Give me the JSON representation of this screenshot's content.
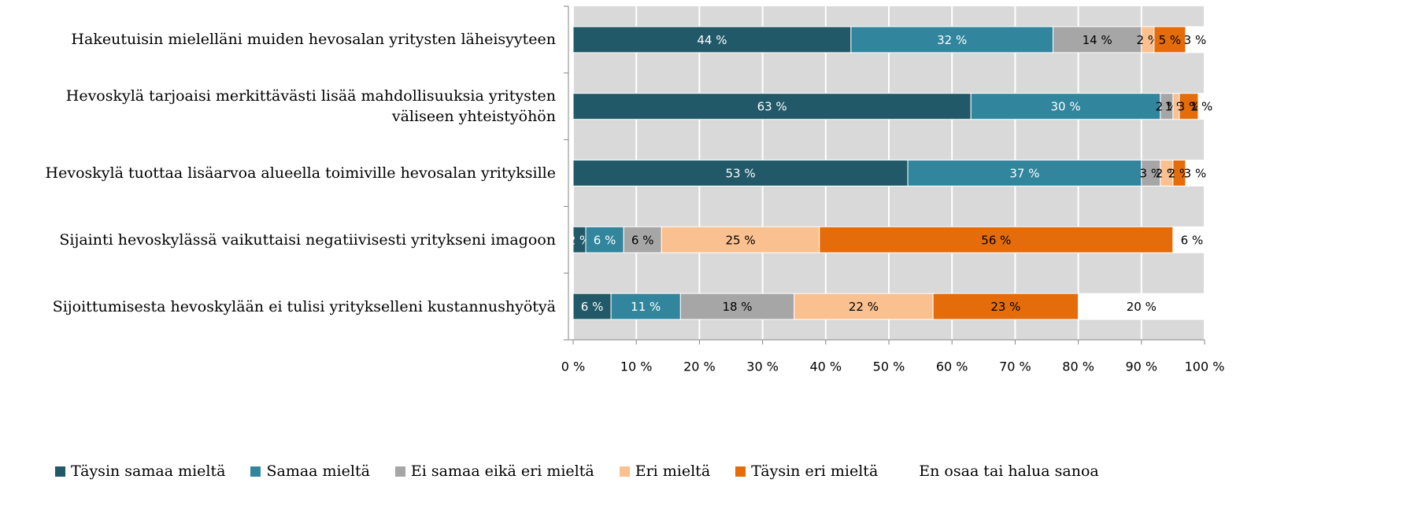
{
  "chart_data": {
    "type": "stacked-bar-horizontal",
    "categories": [
      "Hakeutuisin mielelläni muiden hevosalan yritysten läheisyyteen",
      "Hevoskylä tarjoaisi merkittävästi lisää mahdollisuuksia yritysten väliseen yhteistyöhön",
      "Hevoskylä tuottaa lisäarvoa alueella toimiville hevosalan yrityksille",
      "Sijainti hevoskylässä vaikuttaisi negatiivisesti yritykseni imagoon",
      "Sijoittumisesta hevoskylään ei tulisi yritykselleni kustannushyötyä"
    ],
    "series": [
      {
        "name": "Täysin samaa mieltä",
        "color": "#215968",
        "values": [
          44,
          63,
          53,
          2,
          6
        ],
        "value_labels": [
          "44 %",
          "63 %",
          "53 %",
          "2 %",
          "6 %"
        ]
      },
      {
        "name": "Samaa mieltä",
        "color": "#31859c",
        "values": [
          32,
          30,
          37,
          6,
          11
        ],
        "value_labels": [
          "32 %",
          "30 %",
          "37 %",
          "6 %",
          "11 %"
        ]
      },
      {
        "name": "Ei samaa eikä eri mieltä",
        "color": "#a6a6a6",
        "values": [
          14,
          2,
          3,
          6,
          18
        ],
        "value_labels": [
          "14 %",
          "2 %",
          "3 %",
          "6 %",
          "18 %"
        ]
      },
      {
        "name": "Eri mieltä",
        "color": "#fac090",
        "values": [
          2,
          1,
          2,
          25,
          22
        ],
        "value_labels": [
          "2 %",
          "1 %",
          "2 %",
          "25 %",
          "22 %"
        ]
      },
      {
        "name": "Täysin eri mieltä",
        "color": "#e46c0a",
        "values": [
          5,
          3,
          2,
          56,
          23
        ],
        "value_labels": [
          "5 %",
          "3 %",
          "2 %",
          "56 %",
          "23 %"
        ]
      },
      {
        "name": "En osaa tai halua sanoa",
        "color": "#ffffff",
        "values": [
          3,
          1,
          3,
          6,
          20
        ],
        "value_labels": [
          "3 %",
          "1 %",
          "3 %",
          "6 %",
          "20 %"
        ]
      }
    ],
    "xlim": [
      0,
      100
    ],
    "xticks": [
      {
        "value": 0,
        "label": "0 %"
      },
      {
        "value": 10,
        "label": "10 %"
      },
      {
        "value": 20,
        "label": "20 %"
      },
      {
        "value": 30,
        "label": "30 %"
      },
      {
        "value": 40,
        "label": "40 %"
      },
      {
        "value": 50,
        "label": "50 %"
      },
      {
        "value": 60,
        "label": "60 %"
      },
      {
        "value": 70,
        "label": "70 %"
      },
      {
        "value": 80,
        "label": "80 %"
      },
      {
        "value": 90,
        "label": "90 %"
      },
      {
        "value": 100,
        "label": "100 %"
      }
    ],
    "grid": true
  }
}
